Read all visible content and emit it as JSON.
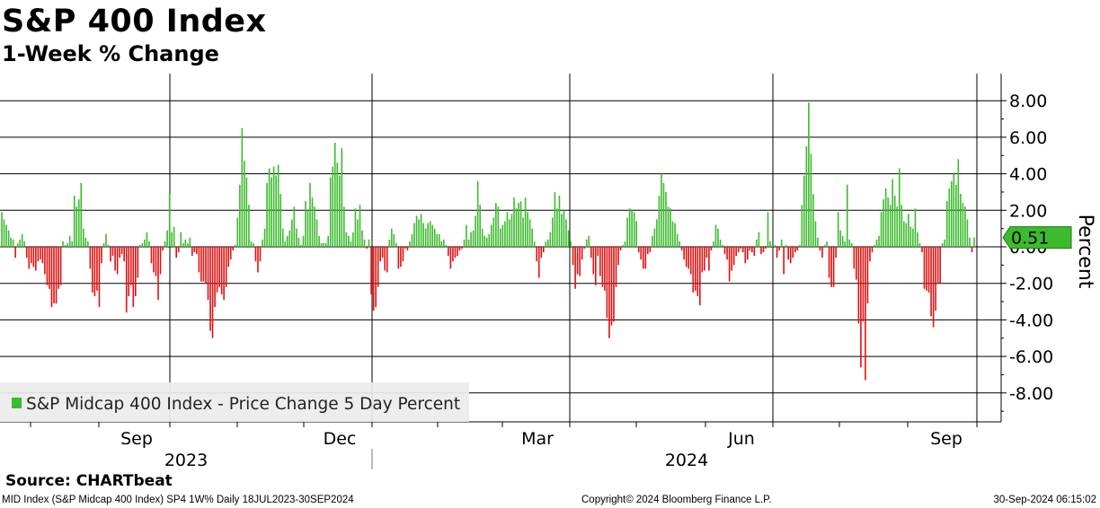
{
  "header": {
    "title": "S&P 400 Index",
    "subtitle": "1-Week % Change"
  },
  "footer": {
    "source": "Source:  CHARTbeat",
    "ticker_line": "MID Index (S&P Midcap 400 Index) SP4 1W%  Daily 18JUL2023-30SEP2024",
    "copyright": "Copyright© 2024 Bloomberg Finance L.P.",
    "timestamp": "30-Sep-2024 06:15:02"
  },
  "colors": {
    "positive": "#3dbb2e",
    "negative": "#dd1111",
    "last_value_badge": "#3dbb2e",
    "grid": "#000000"
  },
  "chart_data": {
    "type": "bar",
    "title": "S&P 400 Index",
    "subtitle": "1-Week % Change",
    "ylabel": "Percent",
    "ylim": [
      -9.6,
      8.8
    ],
    "yticks": [
      8,
      6,
      4,
      2,
      0,
      -2,
      -4,
      -6,
      -8
    ],
    "ytick_labels": [
      "8.00",
      "6.00",
      "4.00",
      "2.00",
      "0.00",
      "-2.00",
      "-4.00",
      "-6.00",
      "-8.00"
    ],
    "x_tick_labels": [
      {
        "date": "2023-09",
        "label": "Sep"
      },
      {
        "date": "2023-12",
        "label": "Dec"
      },
      {
        "date": "2024-03",
        "label": "Mar"
      },
      {
        "date": "2024-06",
        "label": "Jun"
      },
      {
        "date": "2024-09",
        "label": "Sep"
      }
    ],
    "year_labels": [
      {
        "year": "2023",
        "label": "2023"
      },
      {
        "year": "2024",
        "label": "2024"
      }
    ],
    "last_value": 0.51,
    "last_value_label": "0.51",
    "grid": true,
    "legend": {
      "placement": "bottom-left",
      "label": "S&P Midcap 400 Index - Price Change 5 Day Percent"
    },
    "series": [
      {
        "name": "S&P Midcap 400 Index - Price Change 5 Day Percent",
        "start_date": "2023-07-18",
        "end_date": "2024-09-30",
        "values": [
          1.9,
          1.5,
          1.2,
          0.9,
          0.5,
          0.4,
          -0.6,
          0.2,
          0.4,
          0.7,
          0.3,
          -0.6,
          -1.2,
          -0.9,
          -1.1,
          -1.3,
          -0.8,
          -0.7,
          -0.9,
          -1.5,
          -2.1,
          -2.3,
          -3.3,
          -3.1,
          -3.1,
          -2.3,
          -2.1,
          0.3,
          0.1,
          0.2,
          0.6,
          0.3,
          2.8,
          2.2,
          2.6,
          3.5,
          1.0,
          0.5,
          0.3,
          -1.2,
          -2.5,
          -2.7,
          -2.4,
          -3.3,
          -0.9,
          0.2,
          0.7,
          0.1,
          -0.8,
          -0.5,
          -1.3,
          -1.5,
          -0.6,
          -0.4,
          -0.8,
          -3.6,
          -2.7,
          -2.1,
          -3.3,
          -2.7,
          -1.7,
          0.1,
          0.2,
          0.4,
          0.8,
          0.3,
          -0.9,
          -1.4,
          -1.6,
          -2.9,
          -1.5,
          -0.2,
          0.3,
          0.9,
          2.9,
          0.8,
          1.1,
          -0.6,
          -0.3,
          0.8,
          0.2,
          0.4,
          0.2,
          0.5,
          -0.5,
          -0.3,
          -0.4,
          -1.4,
          -1.9,
          -1.9,
          -2.0,
          -2.9,
          -4.6,
          -5.0,
          -3.3,
          -2.5,
          -2.2,
          -2.6,
          -2.9,
          -2.2,
          -1.1,
          -0.7,
          -0.2,
          0.1,
          1.6,
          3.4,
          6.5,
          4.7,
          3.8,
          2.3,
          0.3,
          0.2,
          -0.8,
          -1.4,
          -0.8,
          0.4,
          1.0,
          3.5,
          4.3,
          3.8,
          4.4,
          3.9,
          4.5,
          2.9,
          1.0,
          0.3,
          0.6,
          0.9,
          1.5,
          2.2,
          1.0,
          0.5,
          0.1,
          0.6,
          2.5,
          2.0,
          3.5,
          2.7,
          2.2,
          1.5,
          0.6,
          0.2,
          0.2,
          0.2,
          0.6,
          3.8,
          4.4,
          5.7,
          4.6,
          3.9,
          5.4,
          2.2,
          0.8,
          0.6,
          0.3,
          0.8,
          2.1,
          1.5,
          2.3,
          0.9,
          0.4,
          -0.1,
          0.4,
          -2.6,
          -3.5,
          -3.3,
          -2.2,
          -0.8,
          -0.6,
          -1.3,
          -1.4,
          0.4,
          1.0,
          0.7,
          0.2,
          -1.2,
          -1.1,
          -0.8,
          -0.1,
          -0.2,
          0.3,
          0.7,
          1.3,
          1.7,
          1.5,
          1.8,
          1.3,
          1.0,
          1.3,
          1.4,
          1.2,
          1.0,
          0.7,
          0.7,
          0.3,
          0.4,
          0.1,
          -0.5,
          -1.2,
          -0.8,
          -0.6,
          -0.5,
          -0.2,
          -0.1,
          0.4,
          1.2,
          0.4,
          0.8,
          0.9,
          1.7,
          3.6,
          2.3,
          1.0,
          0.6,
          0.5,
          0.7,
          1.2,
          1.6,
          2.4,
          2.2,
          1.0,
          1.2,
          1.4,
          1.9,
          1.5,
          1.8,
          2.7,
          2.1,
          2.4,
          2.5,
          1.6,
          2.7,
          1.9,
          1.5,
          1.0,
          0.3,
          -0.8,
          -1.7,
          -0.6,
          -0.3,
          0.3,
          0.4,
          0.8,
          1.6,
          3.0,
          2.1,
          2.8,
          1.8,
          2.0,
          1.5,
          0.9,
          0.3,
          -1.0,
          -2.3,
          -1.5,
          -1.6,
          -0.7,
          -0.1,
          0.4,
          0.6,
          -0.6,
          -1.5,
          -2.1,
          -0.5,
          -1.6,
          -2.2,
          -2.4,
          -3.9,
          -5.0,
          -4.3,
          -4.1,
          -2.2,
          -1.0,
          -0.2,
          0.1,
          0.3,
          1.6,
          2.1,
          2.0,
          1.9,
          1.4,
          -0.3,
          -0.7,
          -1.2,
          -1.2,
          -0.4,
          -0.3,
          0.6,
          1.0,
          1.5,
          2.8,
          4.0,
          3.5,
          3.0,
          2.2,
          2.1,
          1.4,
          1.3,
          0.7,
          0.3,
          -0.2,
          -0.7,
          -1.1,
          -1.2,
          -1.5,
          -2.5,
          -2.4,
          -2.7,
          -3.2,
          -1.4,
          -1.3,
          -0.6,
          -1.3,
          -0.2,
          0.3,
          1.2,
          1.0,
          0.4,
          0.1,
          -0.4,
          -0.7,
          -1.9,
          -1.3,
          -1.0,
          -0.5,
          -0.3,
          -0.1,
          -0.3,
          -0.9,
          -0.7,
          -0.2,
          -0.3,
          -0.5,
          0.4,
          0.8,
          -0.4,
          -0.3,
          -0.1,
          1.9,
          0.3,
          0.1,
          0.1,
          -0.6,
          -0.2,
          0.4,
          -1.5,
          0.1,
          -0.7,
          -0.9,
          -0.6,
          -0.3,
          -0.2,
          0.1,
          2.3,
          3.9,
          5.5,
          7.9,
          5.1,
          2.9,
          1.4,
          0.5,
          -0.2,
          -0.6,
          0.1,
          0.3,
          -1.7,
          -2.2,
          -2.2,
          -0.6,
          1.9,
          0.9,
          0.6,
          0.3,
          3.4,
          0.4,
          0.2,
          -1.2,
          -1.8,
          -4.2,
          -6.6,
          -4.1,
          -7.3,
          -3.1,
          -0.8,
          -0.3,
          0.1,
          0.4,
          0.6,
          1.9,
          2.6,
          3.2,
          2.7,
          2.3,
          3.7,
          2.8,
          2.2,
          4.3,
          2.3,
          1.4,
          1.3,
          1.8,
          1.1,
          1.0,
          2.1,
          0.8,
          0.2,
          -0.3,
          -2.3,
          -2.4,
          -2.5,
          -3.8,
          -4.4,
          -3.5,
          -2.0,
          -2.0,
          0.2,
          0.4,
          2.5,
          3.2,
          3.6,
          4.0,
          3.4,
          4.8,
          2.9,
          2.4,
          2.2,
          1.5,
          0.5,
          -0.3,
          0.51
        ]
      }
    ]
  }
}
